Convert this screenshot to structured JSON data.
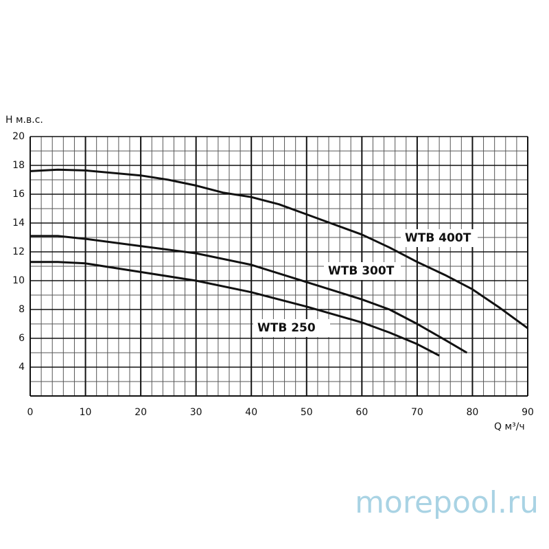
{
  "chart_data": {
    "type": "line",
    "y_label": "H м.в.с.",
    "x_label": "Q м³/ч",
    "watermark": "morepool.ru",
    "xlim": [
      0,
      90
    ],
    "xticks": [
      0,
      10,
      20,
      30,
      40,
      50,
      60,
      70,
      80,
      90
    ],
    "ylim": [
      2,
      20
    ],
    "yticks": [
      4,
      6,
      8,
      10,
      12,
      14,
      16,
      18,
      20
    ],
    "grid": true,
    "minor_grid": {
      "x": 2,
      "y": 1
    },
    "series": [
      {
        "name": "WTB 400T",
        "color": "#111111",
        "x": [
          0,
          5,
          10,
          20,
          25,
          30,
          35,
          40,
          45,
          50,
          55,
          60,
          65,
          70,
          75,
          80,
          85,
          90
        ],
        "values": [
          17.6,
          17.7,
          17.65,
          17.3,
          17.0,
          16.6,
          16.1,
          15.8,
          15.3,
          14.6,
          13.9,
          13.2,
          12.3,
          11.3,
          10.4,
          9.4,
          8.1,
          6.7
        ]
      },
      {
        "name": "WTB 300T",
        "color": "#111111",
        "x": [
          0,
          5,
          10,
          20,
          30,
          40,
          50,
          60,
          65,
          70,
          75,
          79
        ],
        "values": [
          13.1,
          13.1,
          12.9,
          12.4,
          11.9,
          11.1,
          9.9,
          8.7,
          8.0,
          7.0,
          5.9,
          5.0
        ]
      },
      {
        "name": "WTB 250",
        "color": "#111111",
        "x": [
          0,
          5,
          10,
          20,
          30,
          40,
          50,
          60,
          65,
          70,
          74
        ],
        "values": [
          11.3,
          11.3,
          11.2,
          10.6,
          10.0,
          9.2,
          8.2,
          7.1,
          6.4,
          5.6,
          4.8
        ]
      }
    ]
  }
}
